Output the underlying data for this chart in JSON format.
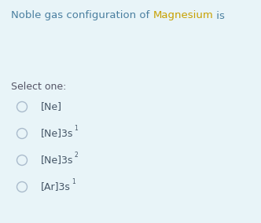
{
  "background_color": "#e8f4f8",
  "title_parts": [
    {
      "text": "Noble gas configuration of ",
      "color": "#4a7fa0",
      "fontsize": 9.5
    },
    {
      "text": "Magnesium",
      "color": "#c8a000",
      "fontsize": 9.5
    },
    {
      "text": " is",
      "color": "#4a7fa0",
      "fontsize": 9.5
    }
  ],
  "select_one_label": "Select one:",
  "select_one_color": "#555566",
  "select_one_fontsize": 9.0,
  "options": [
    {
      "main": "[Ne]",
      "sup": ""
    },
    {
      "main": "[Ne]3s",
      "sup": "1"
    },
    {
      "main": "[Ne]3s",
      "sup": "2"
    },
    {
      "main": "[Ar]3s",
      "sup": "1"
    }
  ],
  "option_color": "#445566",
  "option_fontsize": 9.0,
  "circle_color": "#aabbcc",
  "circle_lw": 1.0,
  "figwidth": 3.32,
  "figheight": 2.84,
  "dpi": 100
}
